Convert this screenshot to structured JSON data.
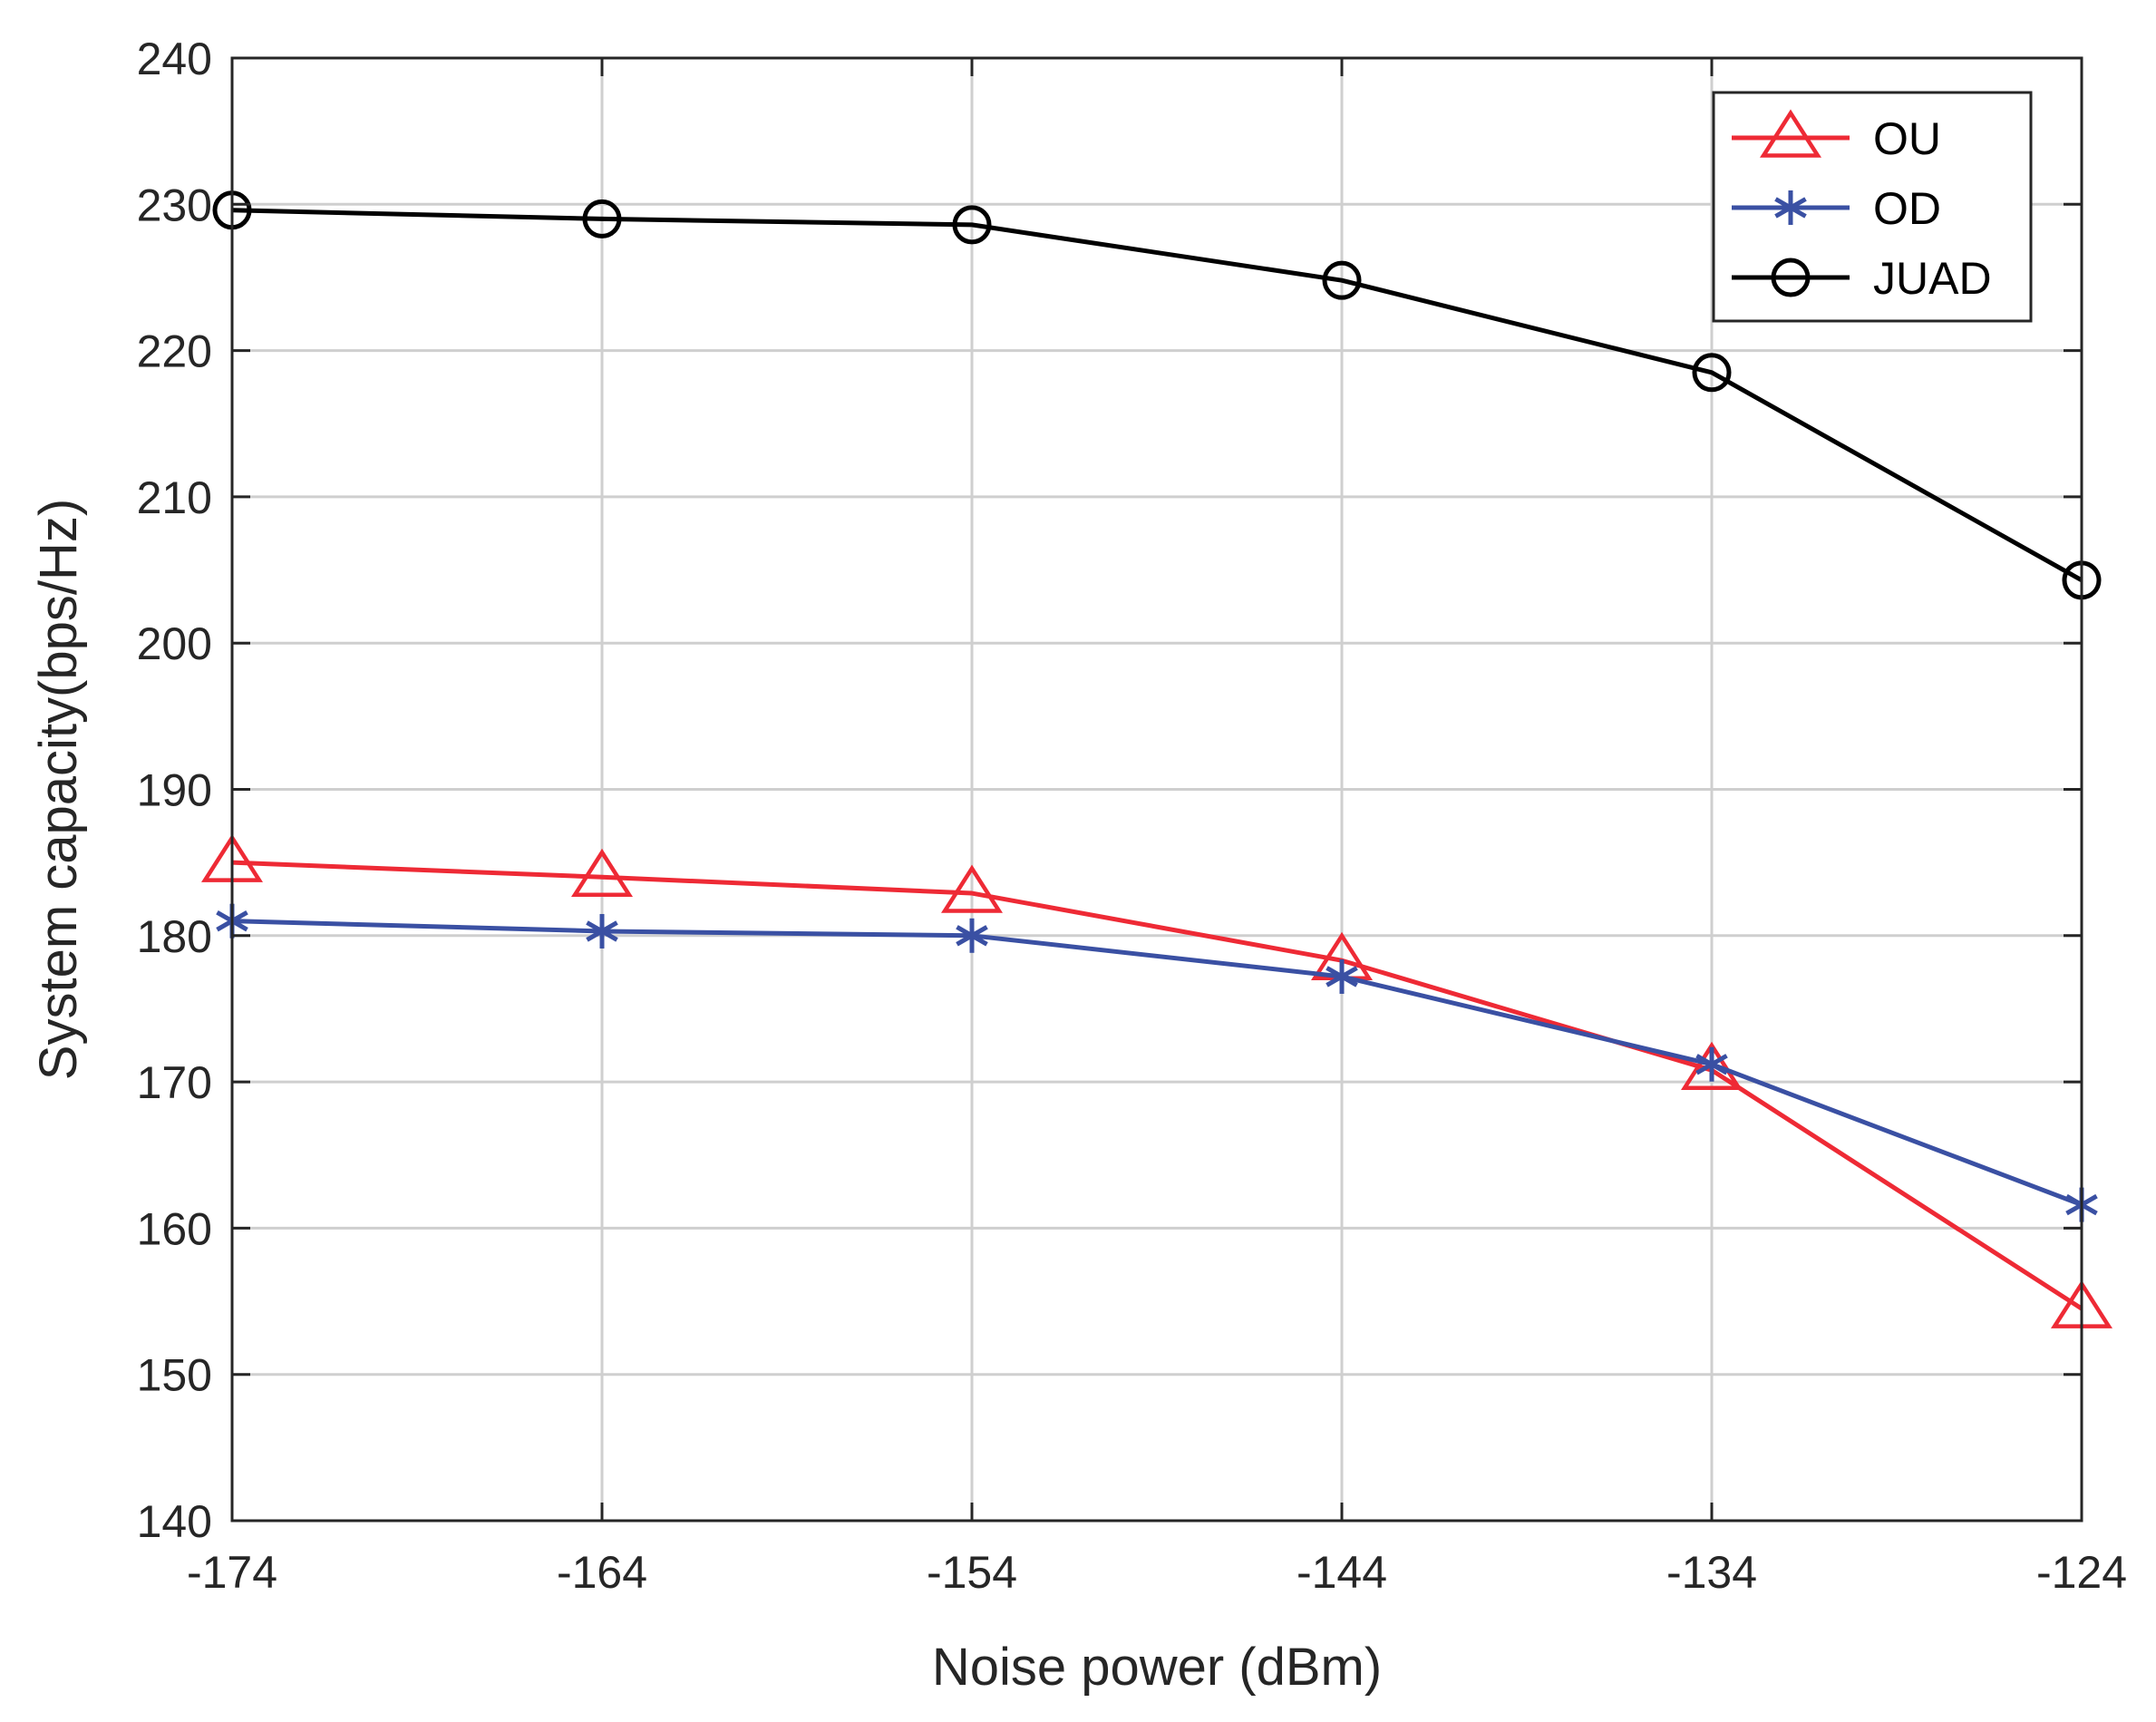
{
  "chart_data": {
    "type": "line",
    "title": "",
    "xlabel": "Noise power (dBm)",
    "ylabel": "System capacity(bps/Hz)",
    "x": [
      -174,
      -164,
      -154,
      -144,
      -134,
      -124
    ],
    "xticks": [
      -174,
      -164,
      -154,
      -144,
      -134,
      -124
    ],
    "yticks": [
      140,
      150,
      160,
      170,
      180,
      190,
      200,
      210,
      220,
      230,
      240
    ],
    "xlim": [
      -174,
      -124
    ],
    "ylim": [
      140,
      240
    ],
    "grid": true,
    "legend_position": "top-right",
    "series": [
      {
        "name": "OU",
        "color": "#ee2a35",
        "marker": "triangle",
        "values": [
          185.0,
          184.0,
          182.9,
          178.3,
          170.8,
          154.5
        ]
      },
      {
        "name": "OD",
        "color": "#3a50a3",
        "marker": "asterisk",
        "values": [
          181.0,
          180.3,
          180.0,
          177.2,
          171.2,
          161.6
        ]
      },
      {
        "name": "JUAD",
        "color": "#000000",
        "marker": "circle",
        "values": [
          229.6,
          229.0,
          228.6,
          224.8,
          218.5,
          204.3
        ]
      }
    ]
  }
}
